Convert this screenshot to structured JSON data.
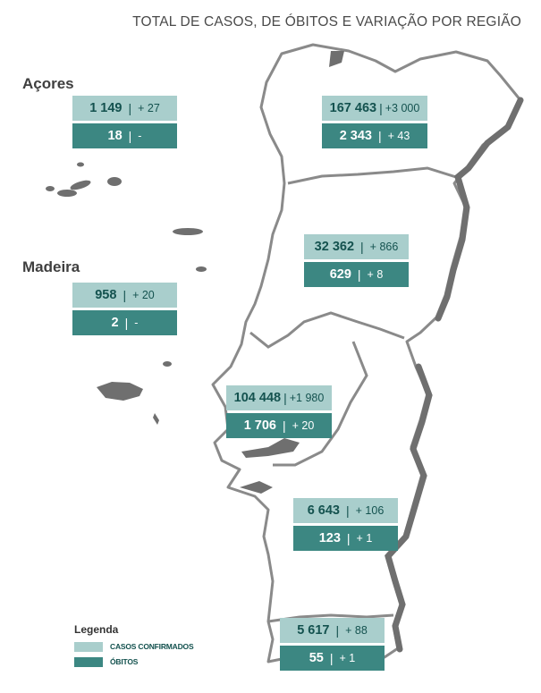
{
  "title": "TOTAL DE CASOS, DE ÓBITOS E VARIAÇÃO POR REGIÃO",
  "labels": {
    "azores": "Açores",
    "madeira": "Madeira"
  },
  "colors": {
    "cases_fill": "#a9cecc",
    "deaths_fill": "#3c8782",
    "map_outline": "#8a8a8a",
    "coast_shade": "#6f6f6f"
  },
  "regions": [
    {
      "key": "acores",
      "cases": "1 149",
      "cases_change": "+ 27",
      "deaths": "18",
      "deaths_change": "-"
    },
    {
      "key": "norte",
      "cases": "167 463",
      "cases_change": "+3 000",
      "deaths": "2 343",
      "deaths_change": "+ 43"
    },
    {
      "key": "centro",
      "cases": "32 362",
      "cases_change": "+ 866",
      "deaths": "629",
      "deaths_change": "+ 8"
    },
    {
      "key": "madeira",
      "cases": "958",
      "cases_change": "+ 20",
      "deaths": "2",
      "deaths_change": "-"
    },
    {
      "key": "lvt",
      "cases": "104 448",
      "cases_change": "+1 980",
      "deaths": "1 706",
      "deaths_change": "+ 20"
    },
    {
      "key": "alentejo",
      "cases": "6 643",
      "cases_change": "+ 106",
      "deaths": "123",
      "deaths_change": "+ 1"
    },
    {
      "key": "algarve",
      "cases": "5 617",
      "cases_change": "+ 88",
      "deaths": "55",
      "deaths_change": "+ 1"
    }
  ],
  "legend": {
    "title": "Legenda",
    "cases": "CASOS CONFIRMADOS",
    "deaths": "ÓBITOS"
  }
}
